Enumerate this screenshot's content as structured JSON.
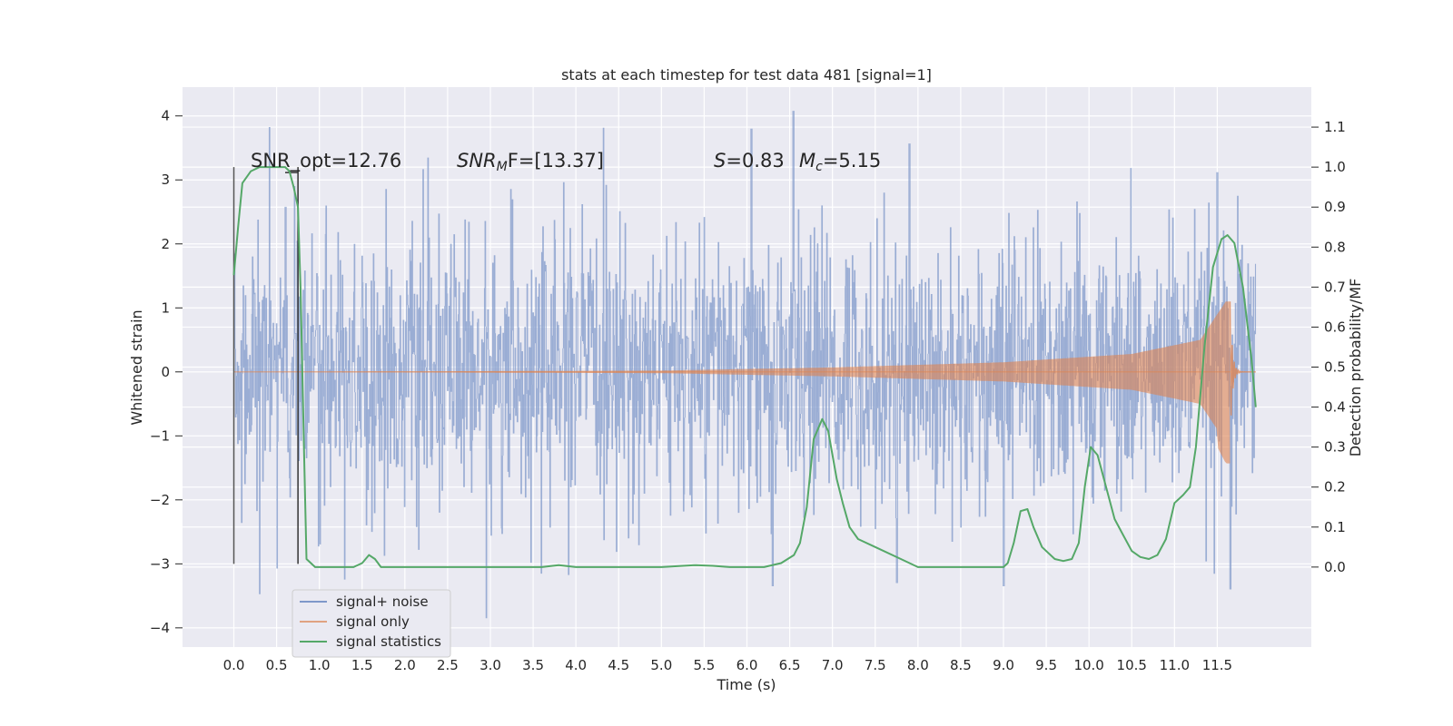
{
  "chart_data": {
    "type": "line",
    "title": "stats at each timestep for test data 481 [signal=1]",
    "xlabel": "Time (s)",
    "ylabel": "Whitened strain",
    "y2label": "Detection probability/MF",
    "xlim": [
      -0.6,
      12.6
    ],
    "ylim": [
      -4.3,
      4.45
    ],
    "y2lim": [
      -0.2,
      1.2
    ],
    "x_ticks": [
      "0.0",
      "0.5",
      "1.0",
      "1.5",
      "2.0",
      "2.5",
      "3.0",
      "3.5",
      "4.0",
      "4.5",
      "5.0",
      "5.5",
      "6.0",
      "6.5",
      "7.0",
      "7.5",
      "8.0",
      "8.5",
      "9.0",
      "9.5",
      "10.0",
      "10.5",
      "11.0",
      "11.5"
    ],
    "y_ticks": [
      "4",
      "3",
      "2",
      "1",
      "0",
      "−1",
      "−2",
      "−3",
      "−4"
    ],
    "y2_ticks": [
      "1.1",
      "1.0",
      "0.9",
      "0.8",
      "0.7",
      "0.6",
      "0.5",
      "0.4",
      "0.3",
      "0.2",
      "0.1",
      "0.0"
    ],
    "grid": true,
    "legend_position": "lower-left",
    "annotations": {
      "snr_opt": "SNR_opt=12.76",
      "snr_mf_main": "SNR",
      "snr_mf_sub": "M",
      "snr_mf_rest": "F=[13.37]",
      "s_main": "S",
      "s_rest": "=0.83",
      "mc_main": "M",
      "mc_sub": "c",
      "mc_rest": "=5.15"
    },
    "series": [
      {
        "name": "signal+ noise",
        "color": "#7f98c9",
        "envelope": {
          "time_range": [
            0.0,
            11.95
          ],
          "typical_band": [
            -1.8,
            1.8
          ],
          "peak_max": [
            0.6,
            2.58,
            6.54,
            4.08,
            6.05,
            3.8,
            7.9,
            3.57,
            11.5,
            3.12
          ],
          "peak_min": [
            2.95,
            -3.85,
            6.3,
            -3.35,
            7.75,
            -3.3,
            9.0,
            -3.35,
            11.65,
            -3.4
          ]
        }
      },
      {
        "name": "signal only",
        "color": "#dd8452",
        "chirp": {
          "start": 0.0,
          "merger": 11.65,
          "end": 11.95,
          "amplitude_points": [
            [
              0.0,
              0.0
            ],
            [
              5.0,
              0.02
            ],
            [
              7.0,
              0.07
            ],
            [
              9.0,
              0.15
            ],
            [
              10.5,
              0.28
            ],
            [
              11.3,
              0.5
            ],
            [
              11.6,
              1.1
            ]
          ]
        }
      },
      {
        "name": "signal statistics",
        "color": "#55a868",
        "points": [
          [
            0.0,
            0.73
          ],
          [
            0.05,
            0.85
          ],
          [
            0.1,
            0.96
          ],
          [
            0.2,
            0.99
          ],
          [
            0.3,
            1.0
          ],
          [
            0.6,
            1.0
          ],
          [
            0.65,
            0.99
          ],
          [
            0.7,
            0.95
          ],
          [
            0.75,
            0.9
          ],
          [
            0.78,
            0.7
          ],
          [
            0.82,
            0.3
          ],
          [
            0.85,
            0.02
          ],
          [
            0.95,
            0.0
          ],
          [
            1.4,
            0.0
          ],
          [
            1.5,
            0.01
          ],
          [
            1.58,
            0.03
          ],
          [
            1.65,
            0.02
          ],
          [
            1.72,
            0.0
          ],
          [
            3.0,
            0.0
          ],
          [
            3.6,
            0.0
          ],
          [
            3.8,
            0.005
          ],
          [
            4.0,
            0.0
          ],
          [
            5.0,
            0.0
          ],
          [
            5.4,
            0.005
          ],
          [
            5.6,
            0.003
          ],
          [
            5.8,
            0.0
          ],
          [
            6.2,
            0.0
          ],
          [
            6.4,
            0.01
          ],
          [
            6.55,
            0.03
          ],
          [
            6.62,
            0.06
          ],
          [
            6.7,
            0.15
          ],
          [
            6.78,
            0.32
          ],
          [
            6.88,
            0.37
          ],
          [
            6.95,
            0.34
          ],
          [
            7.05,
            0.22
          ],
          [
            7.12,
            0.16
          ],
          [
            7.2,
            0.1
          ],
          [
            7.3,
            0.07
          ],
          [
            7.5,
            0.05
          ],
          [
            7.8,
            0.02
          ],
          [
            8.0,
            0.0
          ],
          [
            8.5,
            0.0
          ],
          [
            9.0,
            0.0
          ],
          [
            9.05,
            0.01
          ],
          [
            9.12,
            0.06
          ],
          [
            9.2,
            0.14
          ],
          [
            9.28,
            0.145
          ],
          [
            9.35,
            0.1
          ],
          [
            9.45,
            0.05
          ],
          [
            9.6,
            0.02
          ],
          [
            9.7,
            0.015
          ],
          [
            9.8,
            0.02
          ],
          [
            9.88,
            0.06
          ],
          [
            9.95,
            0.2
          ],
          [
            10.02,
            0.3
          ],
          [
            10.1,
            0.28
          ],
          [
            10.2,
            0.2
          ],
          [
            10.3,
            0.12
          ],
          [
            10.4,
            0.08
          ],
          [
            10.5,
            0.04
          ],
          [
            10.6,
            0.025
          ],
          [
            10.7,
            0.02
          ],
          [
            10.8,
            0.03
          ],
          [
            10.9,
            0.07
          ],
          [
            11.0,
            0.16
          ],
          [
            11.1,
            0.18
          ],
          [
            11.18,
            0.2
          ],
          [
            11.25,
            0.3
          ],
          [
            11.35,
            0.55
          ],
          [
            11.45,
            0.75
          ],
          [
            11.55,
            0.82
          ],
          [
            11.62,
            0.83
          ],
          [
            11.7,
            0.81
          ],
          [
            11.8,
            0.7
          ],
          [
            11.9,
            0.52
          ],
          [
            11.95,
            0.4
          ]
        ]
      }
    ],
    "markers": [
      {
        "x": 0.0,
        "y_from": -3.0,
        "y_to": 3.2,
        "color": "#555555"
      },
      {
        "x": 0.75,
        "y_from": -3.0,
        "y_to": 3.2,
        "color": "#333333"
      }
    ]
  }
}
